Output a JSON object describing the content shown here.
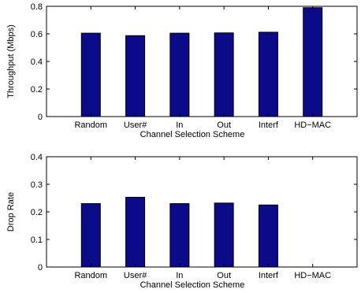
{
  "chart_data": [
    {
      "type": "bar",
      "title": "",
      "categories": [
        "Random",
        "User#",
        "In",
        "Out",
        "Interf",
        "HD−MAC"
      ],
      "values": [
        0.605,
        0.587,
        0.605,
        0.607,
        0.612,
        0.79
      ],
      "xlabel": "Channel Selection Scheme",
      "ylabel": "Throughput (Mbps)",
      "ylim": [
        0,
        0.8
      ],
      "yticks": [
        "0",
        "0.2",
        "0.4",
        "0.6",
        "0.8"
      ],
      "grid": false,
      "bar_color": "#0b0b8a"
    },
    {
      "type": "bar",
      "title": "",
      "categories": [
        "Random",
        "User#",
        "In",
        "Out",
        "Interf",
        "HD−MAC"
      ],
      "values": [
        0.23,
        0.253,
        0.23,
        0.232,
        0.225,
        0.0
      ],
      "xlabel": "Channel Selection Scheme",
      "ylabel": "Drop Rate",
      "ylim": [
        0,
        0.4
      ],
      "yticks": [
        "0",
        "0.1",
        "0.2",
        "0.3",
        "0.4"
      ],
      "grid": false,
      "bar_color": "#0b0b8a"
    }
  ]
}
